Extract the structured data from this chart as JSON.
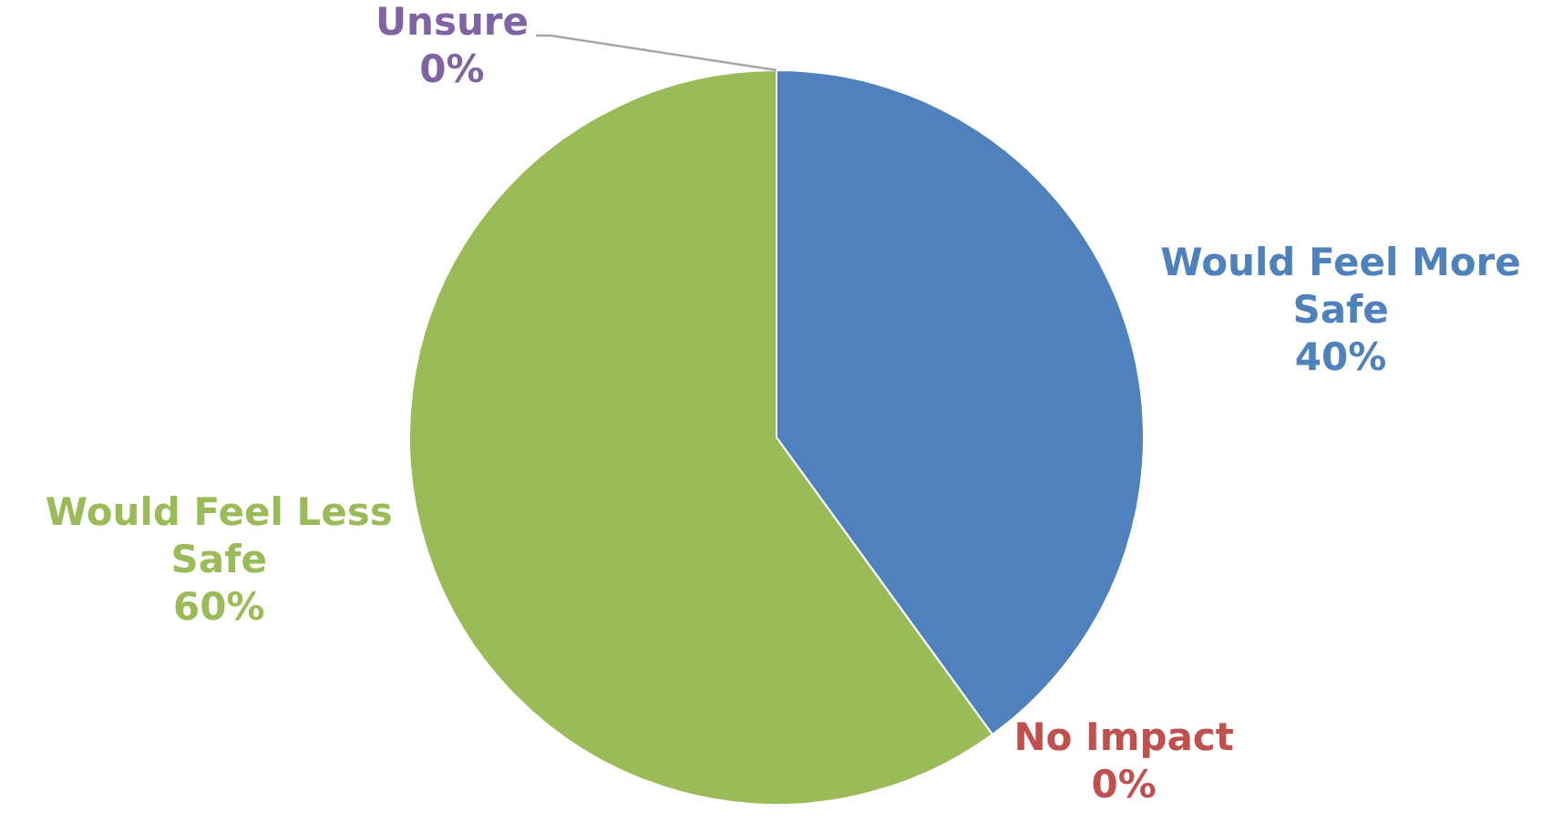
{
  "chart_data": {
    "type": "pie",
    "categories": [
      "Would Feel More Safe",
      "No Impact",
      "Would Feel Less Safe",
      "Unsure"
    ],
    "values": [
      40,
      0,
      60,
      0
    ],
    "value_labels": [
      "40%",
      "0%",
      "60%",
      "0%"
    ],
    "colors": [
      "#4f81bd",
      "#c0504d",
      "#9bbb59",
      "#8064a2"
    ],
    "legend": false
  }
}
